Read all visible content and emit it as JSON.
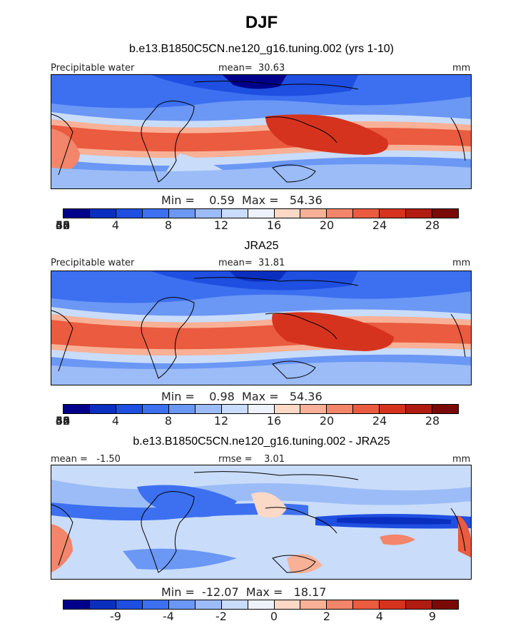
{
  "title": "DJF",
  "panels": [
    {
      "title": "b.e13.B1850C5CN.ne120_g16.tuning.002 (yrs 1-10)",
      "left_label": "Precipitable water",
      "center_label": "mean=  30.63",
      "right_label": "mm",
      "stats": "Min =    0.59  Max =   54.36",
      "ticks": [
        "4",
        "8",
        "12",
        "16",
        "20",
        "24",
        "28",
        "32",
        "36",
        "40",
        "44",
        "48",
        "52",
        "56",
        "60"
      ],
      "colors": [
        "#00008b",
        "#0a2fbf",
        "#1f4fe0",
        "#3c70f0",
        "#6b97f5",
        "#9cbcf7",
        "#c9dcf9",
        "#eef2fb",
        "#fbd9c6",
        "#f8b197",
        "#f2856a",
        "#ea5b3f",
        "#d6331f",
        "#b11c12",
        "#7a0a06"
      ]
    },
    {
      "title": "JRA25",
      "left_label": "Precipitable water",
      "center_label": "mean=  31.81",
      "right_label": "mm",
      "stats": "Min =    0.98  Max =   54.36",
      "ticks": [
        "4",
        "8",
        "12",
        "16",
        "20",
        "24",
        "28",
        "32",
        "36",
        "40",
        "44",
        "48",
        "52",
        "56",
        "60"
      ],
      "colors": [
        "#00008b",
        "#0a2fbf",
        "#1f4fe0",
        "#3c70f0",
        "#6b97f5",
        "#9cbcf7",
        "#c9dcf9",
        "#eef2fb",
        "#fbd9c6",
        "#f8b197",
        "#f2856a",
        "#ea5b3f",
        "#d6331f",
        "#b11c12",
        "#7a0a06"
      ]
    },
    {
      "title": "b.e13.B1850C5CN.ne120_g16.tuning.002 - JRA25",
      "left_label": "mean =   -1.50",
      "center_label": "rmse =    3.01",
      "right_label": "mm",
      "stats": "Min =  -12.07  Max =   18.17",
      "ticks": [
        "-9",
        "-4",
        "-2",
        "0",
        "2",
        "4",
        "9"
      ],
      "colors": [
        "#00008b",
        "#0a2fbf",
        "#1f4fe0",
        "#3c70f0",
        "#6b97f5",
        "#9cbcf7",
        "#c9dcf9",
        "#eef2fb",
        "#fbd9c6",
        "#f8b197",
        "#f2856a",
        "#ea5b3f",
        "#d6331f",
        "#b11c12",
        "#7a0a06"
      ]
    }
  ]
}
